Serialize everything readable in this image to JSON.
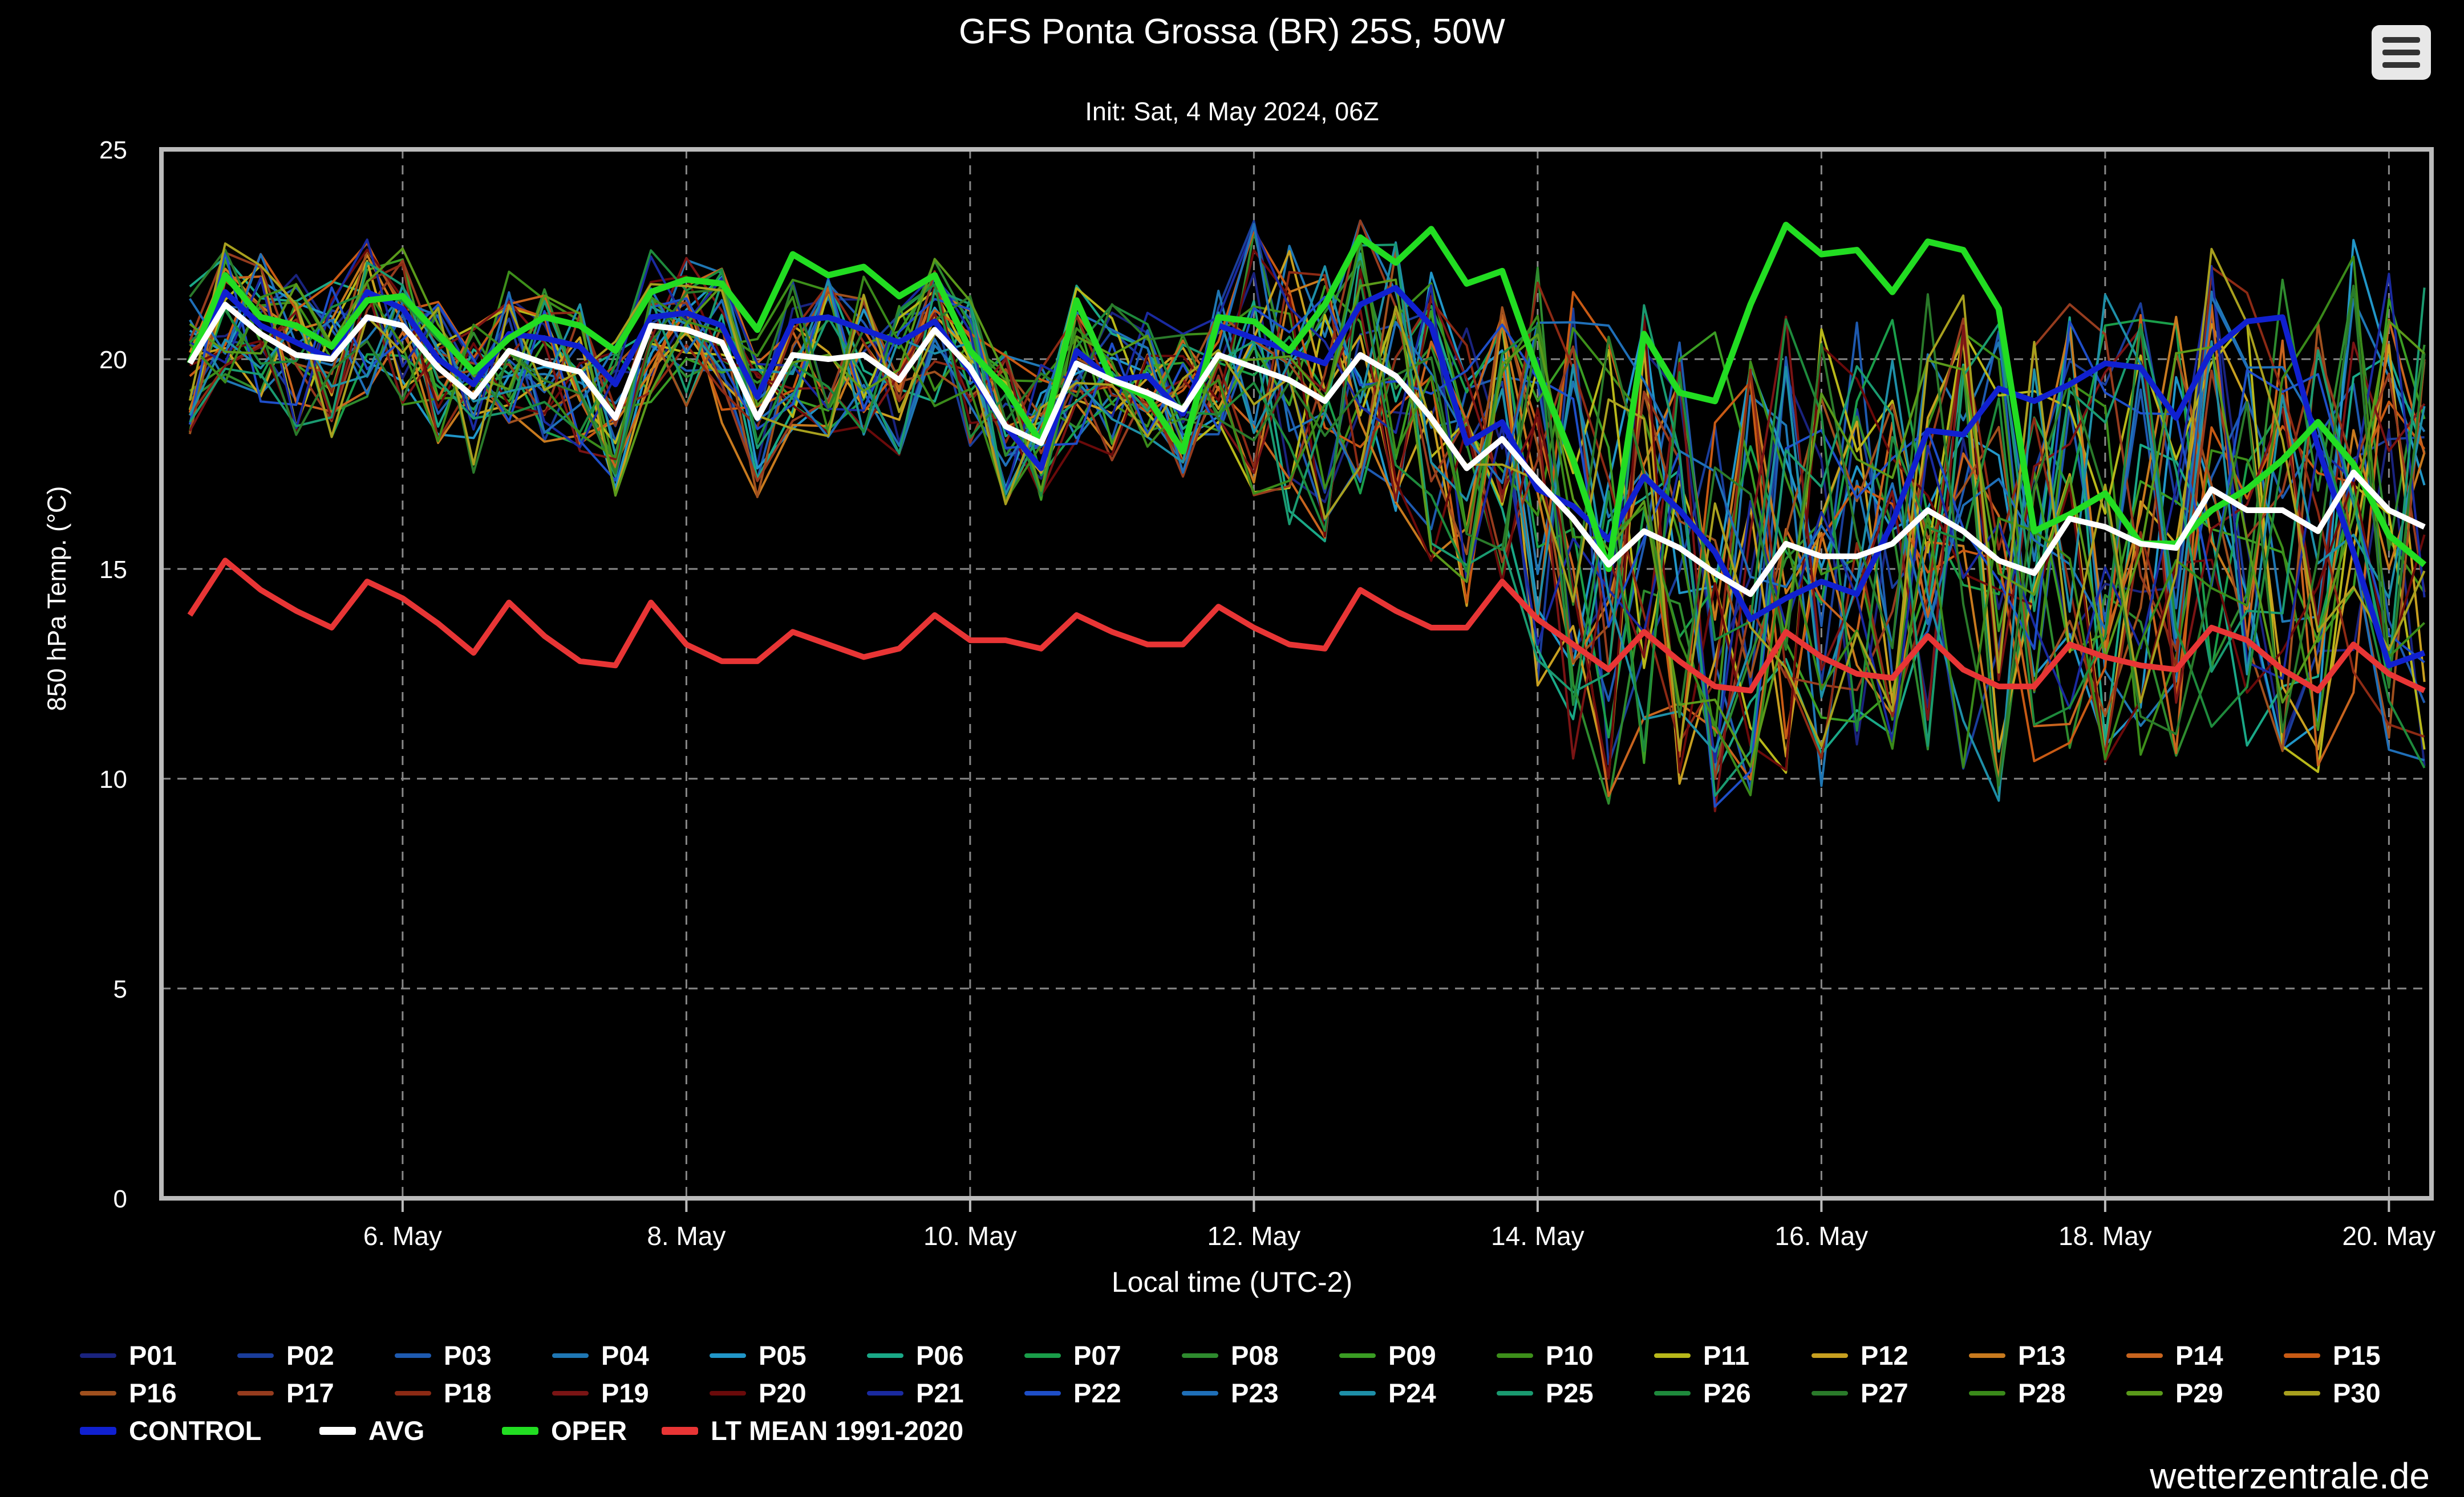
{
  "header": {
    "title": "GFS Ponta Grossa (BR) 25S, 50W",
    "subtitle": "Init: Sat, 4 May 2024, 06Z",
    "menu_icon": "hamburger-menu-icon"
  },
  "footer": {
    "credit": "wetterzentrale.de"
  },
  "chart_data": {
    "type": "line",
    "title": "GFS Ponta Grossa (BR) 25S, 50W",
    "subtitle": "Init: Sat, 4 May 2024, 06Z",
    "xlabel": "Local time (UTC-2)",
    "ylabel": "850 hPa Temp. (°C)",
    "ylim": [
      0,
      25
    ],
    "yticks": [
      0,
      5,
      10,
      15,
      20,
      25
    ],
    "xlim": [
      4.3,
      20.3
    ],
    "x_unit": "day of May 2024",
    "xticks": [
      {
        "value": 6,
        "label": "6. May"
      },
      {
        "value": 8,
        "label": "8. May"
      },
      {
        "value": 10,
        "label": "10. May"
      },
      {
        "value": 12,
        "label": "12. May"
      },
      {
        "value": 14,
        "label": "14. May"
      },
      {
        "value": 16,
        "label": "16. May"
      },
      {
        "value": 18,
        "label": "18. May"
      },
      {
        "value": 20,
        "label": "20. May"
      }
    ],
    "grid": true,
    "legend_position": "bottom",
    "x": [
      4.5,
      4.75,
      5.0,
      5.25,
      5.5,
      5.75,
      6.0,
      6.25,
      6.5,
      6.75,
      7.0,
      7.25,
      7.5,
      7.75,
      8.0,
      8.25,
      8.5,
      8.75,
      9.0,
      9.25,
      9.5,
      9.75,
      10.0,
      10.25,
      10.5,
      10.75,
      11.0,
      11.25,
      11.5,
      11.75,
      12.0,
      12.25,
      12.5,
      12.75,
      13.0,
      13.25,
      13.5,
      13.75,
      14.0,
      14.25,
      14.5,
      14.75,
      15.0,
      15.25,
      15.5,
      15.75,
      16.0,
      16.25,
      16.5,
      16.75,
      17.0,
      17.25,
      17.5,
      17.75,
      18.0,
      18.25,
      18.5,
      18.75,
      19.0,
      19.25,
      19.5,
      19.75,
      20.0,
      20.25
    ],
    "series": [
      {
        "name": "CONTROL",
        "color": "#1020d0",
        "width": 10,
        "values": [
          19.9,
          21.6,
          20.8,
          20.4,
          20.0,
          21.6,
          21.2,
          20.0,
          19.4,
          20.6,
          20.5,
          20.3,
          19.4,
          21.0,
          21.1,
          20.8,
          19.1,
          20.9,
          21.0,
          20.7,
          20.4,
          20.9,
          19.7,
          18.4,
          17.4,
          20.2,
          19.5,
          19.6,
          18.7,
          20.8,
          20.5,
          20.2,
          19.9,
          21.3,
          21.7,
          20.8,
          18.0,
          18.5,
          16.9,
          16.5,
          15.7,
          17.2,
          16.4,
          15.4,
          13.8,
          14.3,
          14.7,
          14.4,
          16.1,
          18.3,
          18.2,
          19.3,
          19.0,
          19.4,
          19.9,
          19.8,
          18.6,
          20.2,
          20.9,
          21.0,
          17.9,
          15.4,
          12.7,
          13.0
        ]
      },
      {
        "name": "AVG",
        "color": "#ffffff",
        "width": 10,
        "values": [
          19.9,
          21.3,
          20.6,
          20.1,
          20.0,
          21.0,
          20.8,
          19.8,
          19.1,
          20.2,
          19.9,
          19.7,
          18.6,
          20.8,
          20.7,
          20.4,
          18.6,
          20.1,
          20.0,
          20.1,
          19.5,
          20.7,
          19.8,
          18.4,
          18.0,
          19.9,
          19.5,
          19.2,
          18.8,
          20.1,
          19.8,
          19.5,
          19.0,
          20.1,
          19.6,
          18.6,
          17.4,
          18.1,
          17.1,
          16.2,
          15.1,
          15.9,
          15.5,
          14.9,
          14.4,
          15.6,
          15.3,
          15.3,
          15.6,
          16.4,
          15.9,
          15.2,
          14.9,
          16.2,
          16.0,
          15.6,
          15.5,
          16.9,
          16.4,
          16.4,
          15.9,
          17.3,
          16.4,
          16.0
        ]
      },
      {
        "name": "OPER",
        "color": "#22dd22",
        "width": 11,
        "values": [
          19.9,
          22.0,
          21.0,
          20.8,
          20.3,
          21.4,
          21.5,
          20.6,
          19.7,
          20.5,
          21.0,
          20.8,
          20.2,
          21.6,
          21.9,
          21.8,
          20.7,
          22.5,
          22.0,
          22.2,
          21.5,
          22.0,
          20.2,
          19.3,
          18.0,
          21.4,
          19.5,
          19.1,
          17.8,
          21.0,
          20.9,
          20.2,
          21.3,
          22.9,
          22.3,
          23.1,
          21.8,
          22.1,
          19.7,
          17.6,
          15.0,
          20.6,
          19.2,
          19.0,
          21.3,
          23.2,
          22.5,
          22.6,
          21.6,
          22.8,
          22.6,
          21.2,
          15.9,
          16.3,
          16.8,
          15.6,
          15.6,
          16.4,
          16.9,
          17.6,
          18.5,
          17.5,
          15.8,
          15.1
        ]
      },
      {
        "name": "LT MEAN 1991-2020",
        "color": "#e83535",
        "width": 10,
        "values": [
          13.9,
          15.2,
          14.5,
          14.0,
          13.6,
          14.7,
          14.3,
          13.7,
          13.0,
          14.2,
          13.4,
          12.8,
          12.7,
          14.2,
          13.2,
          12.8,
          12.8,
          13.5,
          13.2,
          12.9,
          13.1,
          13.9,
          13.3,
          13.3,
          13.1,
          13.9,
          13.5,
          13.2,
          13.2,
          14.1,
          13.6,
          13.2,
          13.1,
          14.5,
          14.0,
          13.6,
          13.6,
          14.7,
          13.8,
          13.2,
          12.6,
          13.5,
          12.8,
          12.2,
          12.1,
          13.5,
          12.9,
          12.5,
          12.4,
          13.4,
          12.6,
          12.2,
          12.2,
          13.2,
          12.9,
          12.7,
          12.6,
          13.6,
          13.3,
          12.6,
          12.1,
          13.2,
          12.5,
          12.1
        ]
      }
    ],
    "ensemble_members": [
      {
        "name": "P01",
        "color": "#1a237e"
      },
      {
        "name": "P02",
        "color": "#1a3d9a"
      },
      {
        "name": "P03",
        "color": "#1e5ab0"
      },
      {
        "name": "P04",
        "color": "#1f77b4"
      },
      {
        "name": "P05",
        "color": "#2196c8"
      },
      {
        "name": "P06",
        "color": "#1aa887"
      },
      {
        "name": "P07",
        "color": "#1a9e4a"
      },
      {
        "name": "P08",
        "color": "#2e8b2e"
      },
      {
        "name": "P09",
        "color": "#3a9d23"
      },
      {
        "name": "P10",
        "color": "#3d8f1a"
      },
      {
        "name": "P11",
        "color": "#b8b81a"
      },
      {
        "name": "P12",
        "color": "#c8a020"
      },
      {
        "name": "P13",
        "color": "#c87a1e"
      },
      {
        "name": "P14",
        "color": "#c8641e"
      },
      {
        "name": "P15",
        "color": "#c85a14"
      },
      {
        "name": "P16",
        "color": "#a0501e"
      },
      {
        "name": "P17",
        "color": "#963c1e"
      },
      {
        "name": "P18",
        "color": "#8c2a14"
      },
      {
        "name": "P19",
        "color": "#7a1414"
      },
      {
        "name": "P20",
        "color": "#6a0a0a"
      },
      {
        "name": "P21",
        "color": "#1a2aa0"
      },
      {
        "name": "P22",
        "color": "#1e4ec8"
      },
      {
        "name": "P23",
        "color": "#1f6fb8"
      },
      {
        "name": "P24",
        "color": "#1e8fa8"
      },
      {
        "name": "P25",
        "color": "#1a9a70"
      },
      {
        "name": "P26",
        "color": "#1e8a3c"
      },
      {
        "name": "P27",
        "color": "#2a7a2a"
      },
      {
        "name": "P28",
        "color": "#3a8a1a"
      },
      {
        "name": "P29",
        "color": "#5a9a1a"
      },
      {
        "name": "P30",
        "color": "#a8a01e"
      }
    ],
    "legend": [
      "P01",
      "P02",
      "P03",
      "P04",
      "P05",
      "P06",
      "P07",
      "P08",
      "P09",
      "P10",
      "P11",
      "P12",
      "P13",
      "P14",
      "P15",
      "P16",
      "P17",
      "P18",
      "P19",
      "P20",
      "P21",
      "P22",
      "P23",
      "P24",
      "P25",
      "P26",
      "P27",
      "P28",
      "P29",
      "P30",
      "CONTROL",
      "AVG",
      "OPER",
      "LT MEAN 1991-2020"
    ]
  }
}
